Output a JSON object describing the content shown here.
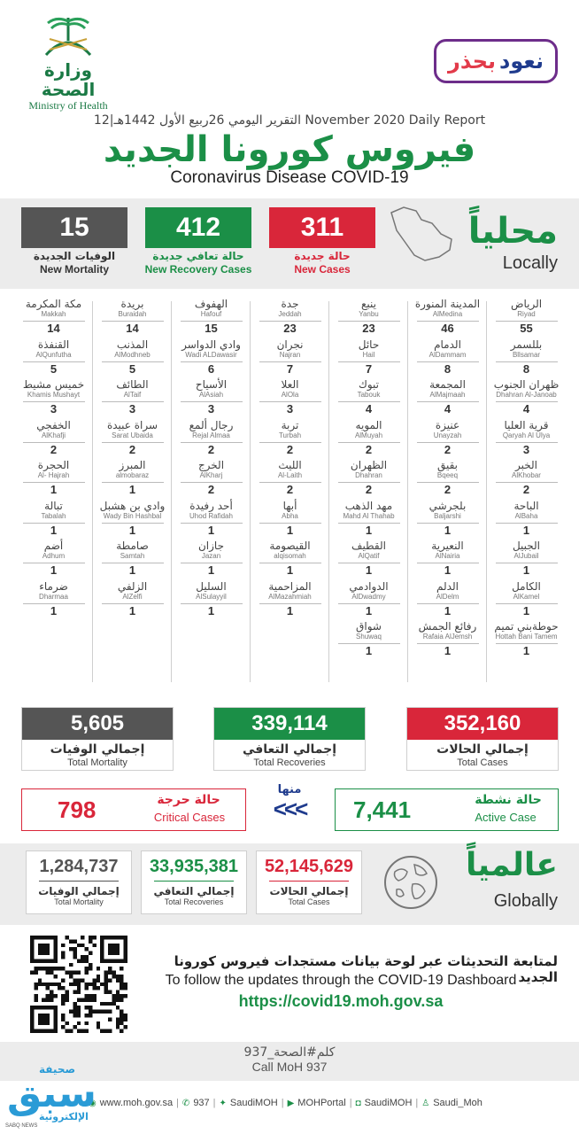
{
  "header": {
    "moh_ar": "وزارة الصحة",
    "moh_en": "Ministry of Health",
    "campaign_part1": "نعود",
    "campaign_part2": "بحذر",
    "daily_report": "التقرير اليومي 26ربيع الأول 1442هـ|12 November 2020 Daily Report",
    "title_ar": "فيروس كورونا الجديد",
    "title_en": "Coronavirus Disease COVID-19"
  },
  "local": {
    "heading_ar": "محلياً",
    "heading_en": "Locally",
    "new_cases": {
      "value": "311",
      "label_ar": "حالة جديدة",
      "label_en": "New Cases",
      "color": "#d9263a"
    },
    "new_recovery": {
      "value": "412",
      "label_ar": "حالة تعافي جديدة",
      "label_en": "New Recovery Cases",
      "color": "#1b8f47"
    },
    "new_mortality": {
      "value": "15",
      "label_ar": "الوفيات الجديدة",
      "label_en": "New Mortality",
      "color": "#555555"
    }
  },
  "cities": [
    [
      {
        "ar": "الرياض",
        "en": "Riyad",
        "v": "55"
      },
      {
        "ar": "بللسمر",
        "en": "Bllsamar",
        "v": "8"
      },
      {
        "ar": "ظهران الجنوب",
        "en": "Dhahran Al-Janoab",
        "v": "4"
      },
      {
        "ar": "قرية العليا",
        "en": "Qaryah Al Ulya",
        "v": "3"
      },
      {
        "ar": "الخبر",
        "en": "AlKhobar",
        "v": "2"
      },
      {
        "ar": "الباحة",
        "en": "AlBaha",
        "v": "1"
      },
      {
        "ar": "الجبيل",
        "en": "AlJubail",
        "v": "1"
      },
      {
        "ar": "الكامل",
        "en": "AlKamel",
        "v": "1"
      },
      {
        "ar": "حوطةبني تميم",
        "en": "Hottah Bani Tamem",
        "v": "1"
      }
    ],
    [
      {
        "ar": "المدينة المنورة",
        "en": "AlMedina",
        "v": "46"
      },
      {
        "ar": "الدمام",
        "en": "AlDammam",
        "v": "8"
      },
      {
        "ar": "المجمعة",
        "en": "AlMajmaah",
        "v": "4"
      },
      {
        "ar": "عنيزة",
        "en": "Unayzah",
        "v": "2"
      },
      {
        "ar": "بقيق",
        "en": "Bqeeq",
        "v": "2"
      },
      {
        "ar": "بلجرشي",
        "en": "Baljarshi",
        "v": "1"
      },
      {
        "ar": "النعيرية",
        "en": "AlNairia",
        "v": "1"
      },
      {
        "ar": "الدلم",
        "en": "AlDelm",
        "v": "1"
      },
      {
        "ar": "رفائع الجمش",
        "en": "Rafaia AlJemsh",
        "v": "1"
      }
    ],
    [
      {
        "ar": "ينبع",
        "en": "Yanbu",
        "v": "23"
      },
      {
        "ar": "حائل",
        "en": "Hail",
        "v": "7"
      },
      {
        "ar": "تبوك",
        "en": "Tabouk",
        "v": "4"
      },
      {
        "ar": "المويه",
        "en": "AlMuyah",
        "v": "2"
      },
      {
        "ar": "الظهران",
        "en": "Dhahran",
        "v": "2"
      },
      {
        "ar": "مهد الذهب",
        "en": "Mahd Al Thahab",
        "v": "1"
      },
      {
        "ar": "القطيف",
        "en": "AlQatif",
        "v": "1"
      },
      {
        "ar": "الدوادمي",
        "en": "AlDwadmy",
        "v": "1"
      },
      {
        "ar": "شواق",
        "en": "Shuwaq",
        "v": "1"
      }
    ],
    [
      {
        "ar": "جدة",
        "en": "Jeddah",
        "v": "23"
      },
      {
        "ar": "نجران",
        "en": "Najran",
        "v": "7"
      },
      {
        "ar": "العلا",
        "en": "AlOla",
        "v": "3"
      },
      {
        "ar": "تربة",
        "en": "Turbah",
        "v": "2"
      },
      {
        "ar": "الليث",
        "en": "Al-Laith",
        "v": "2"
      },
      {
        "ar": "أبها",
        "en": "Abha",
        "v": "1"
      },
      {
        "ar": "القيصومة",
        "en": "alqisomah",
        "v": "1"
      },
      {
        "ar": "المزاحمية",
        "en": "AlMazahmiah",
        "v": "1"
      }
    ],
    [
      {
        "ar": "الهفوف",
        "en": "Hafouf",
        "v": "15"
      },
      {
        "ar": "وادي الدواسر",
        "en": "Wadi ALDawasir",
        "v": "6"
      },
      {
        "ar": "الأسياح",
        "en": "AlAsiah",
        "v": "3"
      },
      {
        "ar": "رجال ألمع",
        "en": "Rejal Almaa",
        "v": "2"
      },
      {
        "ar": "الخرج",
        "en": "AlKharj",
        "v": "2"
      },
      {
        "ar": "أحد رفيدة",
        "en": "Uhod Rafidah",
        "v": "1"
      },
      {
        "ar": "جازان",
        "en": "Jazan",
        "v": "1"
      },
      {
        "ar": "السليل",
        "en": "AlSulayyil",
        "v": "1"
      }
    ],
    [
      {
        "ar": "بريدة",
        "en": "Buraidah",
        "v": "14"
      },
      {
        "ar": "المذنب",
        "en": "AlModhneb",
        "v": "5"
      },
      {
        "ar": "الطائف",
        "en": "AlTaif",
        "v": "3"
      },
      {
        "ar": "سراة عبيدة",
        "en": "Sarat Ubaida",
        "v": "2"
      },
      {
        "ar": "المبرز",
        "en": "almobaraz",
        "v": "1"
      },
      {
        "ar": "وادي بن هشبل",
        "en": "Wady Bin Hashbal",
        "v": "1"
      },
      {
        "ar": "صامطة",
        "en": "Samtah",
        "v": "1"
      },
      {
        "ar": "الزلفي",
        "en": "AlZelfi",
        "v": "1"
      }
    ],
    [
      {
        "ar": "مكة المكرمة",
        "en": "Makkah",
        "v": "14"
      },
      {
        "ar": "القنفذة",
        "en": "AlQunfutha",
        "v": "5"
      },
      {
        "ar": "خميس مشيط",
        "en": "Khamis Mushayt",
        "v": "3"
      },
      {
        "ar": "الخفجي",
        "en": "AlKhafji",
        "v": "2"
      },
      {
        "ar": "الحجرة",
        "en": "Al- Hajrah",
        "v": "1"
      },
      {
        "ar": "تبالة",
        "en": "Tabalah",
        "v": "1"
      },
      {
        "ar": "أضم",
        "en": "Adhum",
        "v": "1"
      },
      {
        "ar": "ضرماء",
        "en": "Dharmaa",
        "v": "1"
      }
    ]
  ],
  "totals": {
    "cases": {
      "value": "352,160",
      "ar": "إجمالي الحالات",
      "en": "Total Cases",
      "color": "#d9263a"
    },
    "recoveries": {
      "value": "339,114",
      "ar": "إجمالي التعافي",
      "en": "Total Recoveries",
      "color": "#1b8f47"
    },
    "mortality": {
      "value": "5,605",
      "ar": "إجمالي الوفيات",
      "en": "Total Mortality",
      "color": "#555555"
    }
  },
  "active": {
    "value": "7,441",
    "ar": "حالة نشطة",
    "en": "Active Case"
  },
  "critical": {
    "value": "798",
    "ar": "حالة حرجة",
    "en": "Critical Cases"
  },
  "minha": "منها",
  "arrows": "<<<",
  "global": {
    "heading_ar": "عالمياً",
    "heading_en": "Globally",
    "cases": {
      "value": "52,145,629",
      "ar": "إجمالي الحالات",
      "en": "Total Cases"
    },
    "recoveries": {
      "value": "33,935,381",
      "ar": "إجمالي التعافي",
      "en": "Total Recoveries"
    },
    "mortality": {
      "value": "1,284,737",
      "ar": "إجمالي الوفيات",
      "en": "Total Mortality"
    }
  },
  "dashboard": {
    "ar": "لمتابعة التحديثات عبر لوحة بيانات مستجدات فيروس كورونا الجديد",
    "en": "To follow the updates through the COVID-19 Dashboard",
    "url": "https://covid19.moh.gov.sa"
  },
  "call": {
    "ar": "كلم#الصحة_937",
    "en": "Call MoH 937"
  },
  "social": {
    "web": "www.moh.gov.sa",
    "phone": "937",
    "twitter": "SaudiMOH",
    "youtube": "MOHPortal",
    "instagram": "SaudiMOH",
    "snapchat": "Saudi_Moh"
  },
  "sabq": {
    "top": "صحيفة",
    "main": "سبق",
    "bottom": "الإلكترونية",
    "tag": "SABQ NEWS"
  }
}
